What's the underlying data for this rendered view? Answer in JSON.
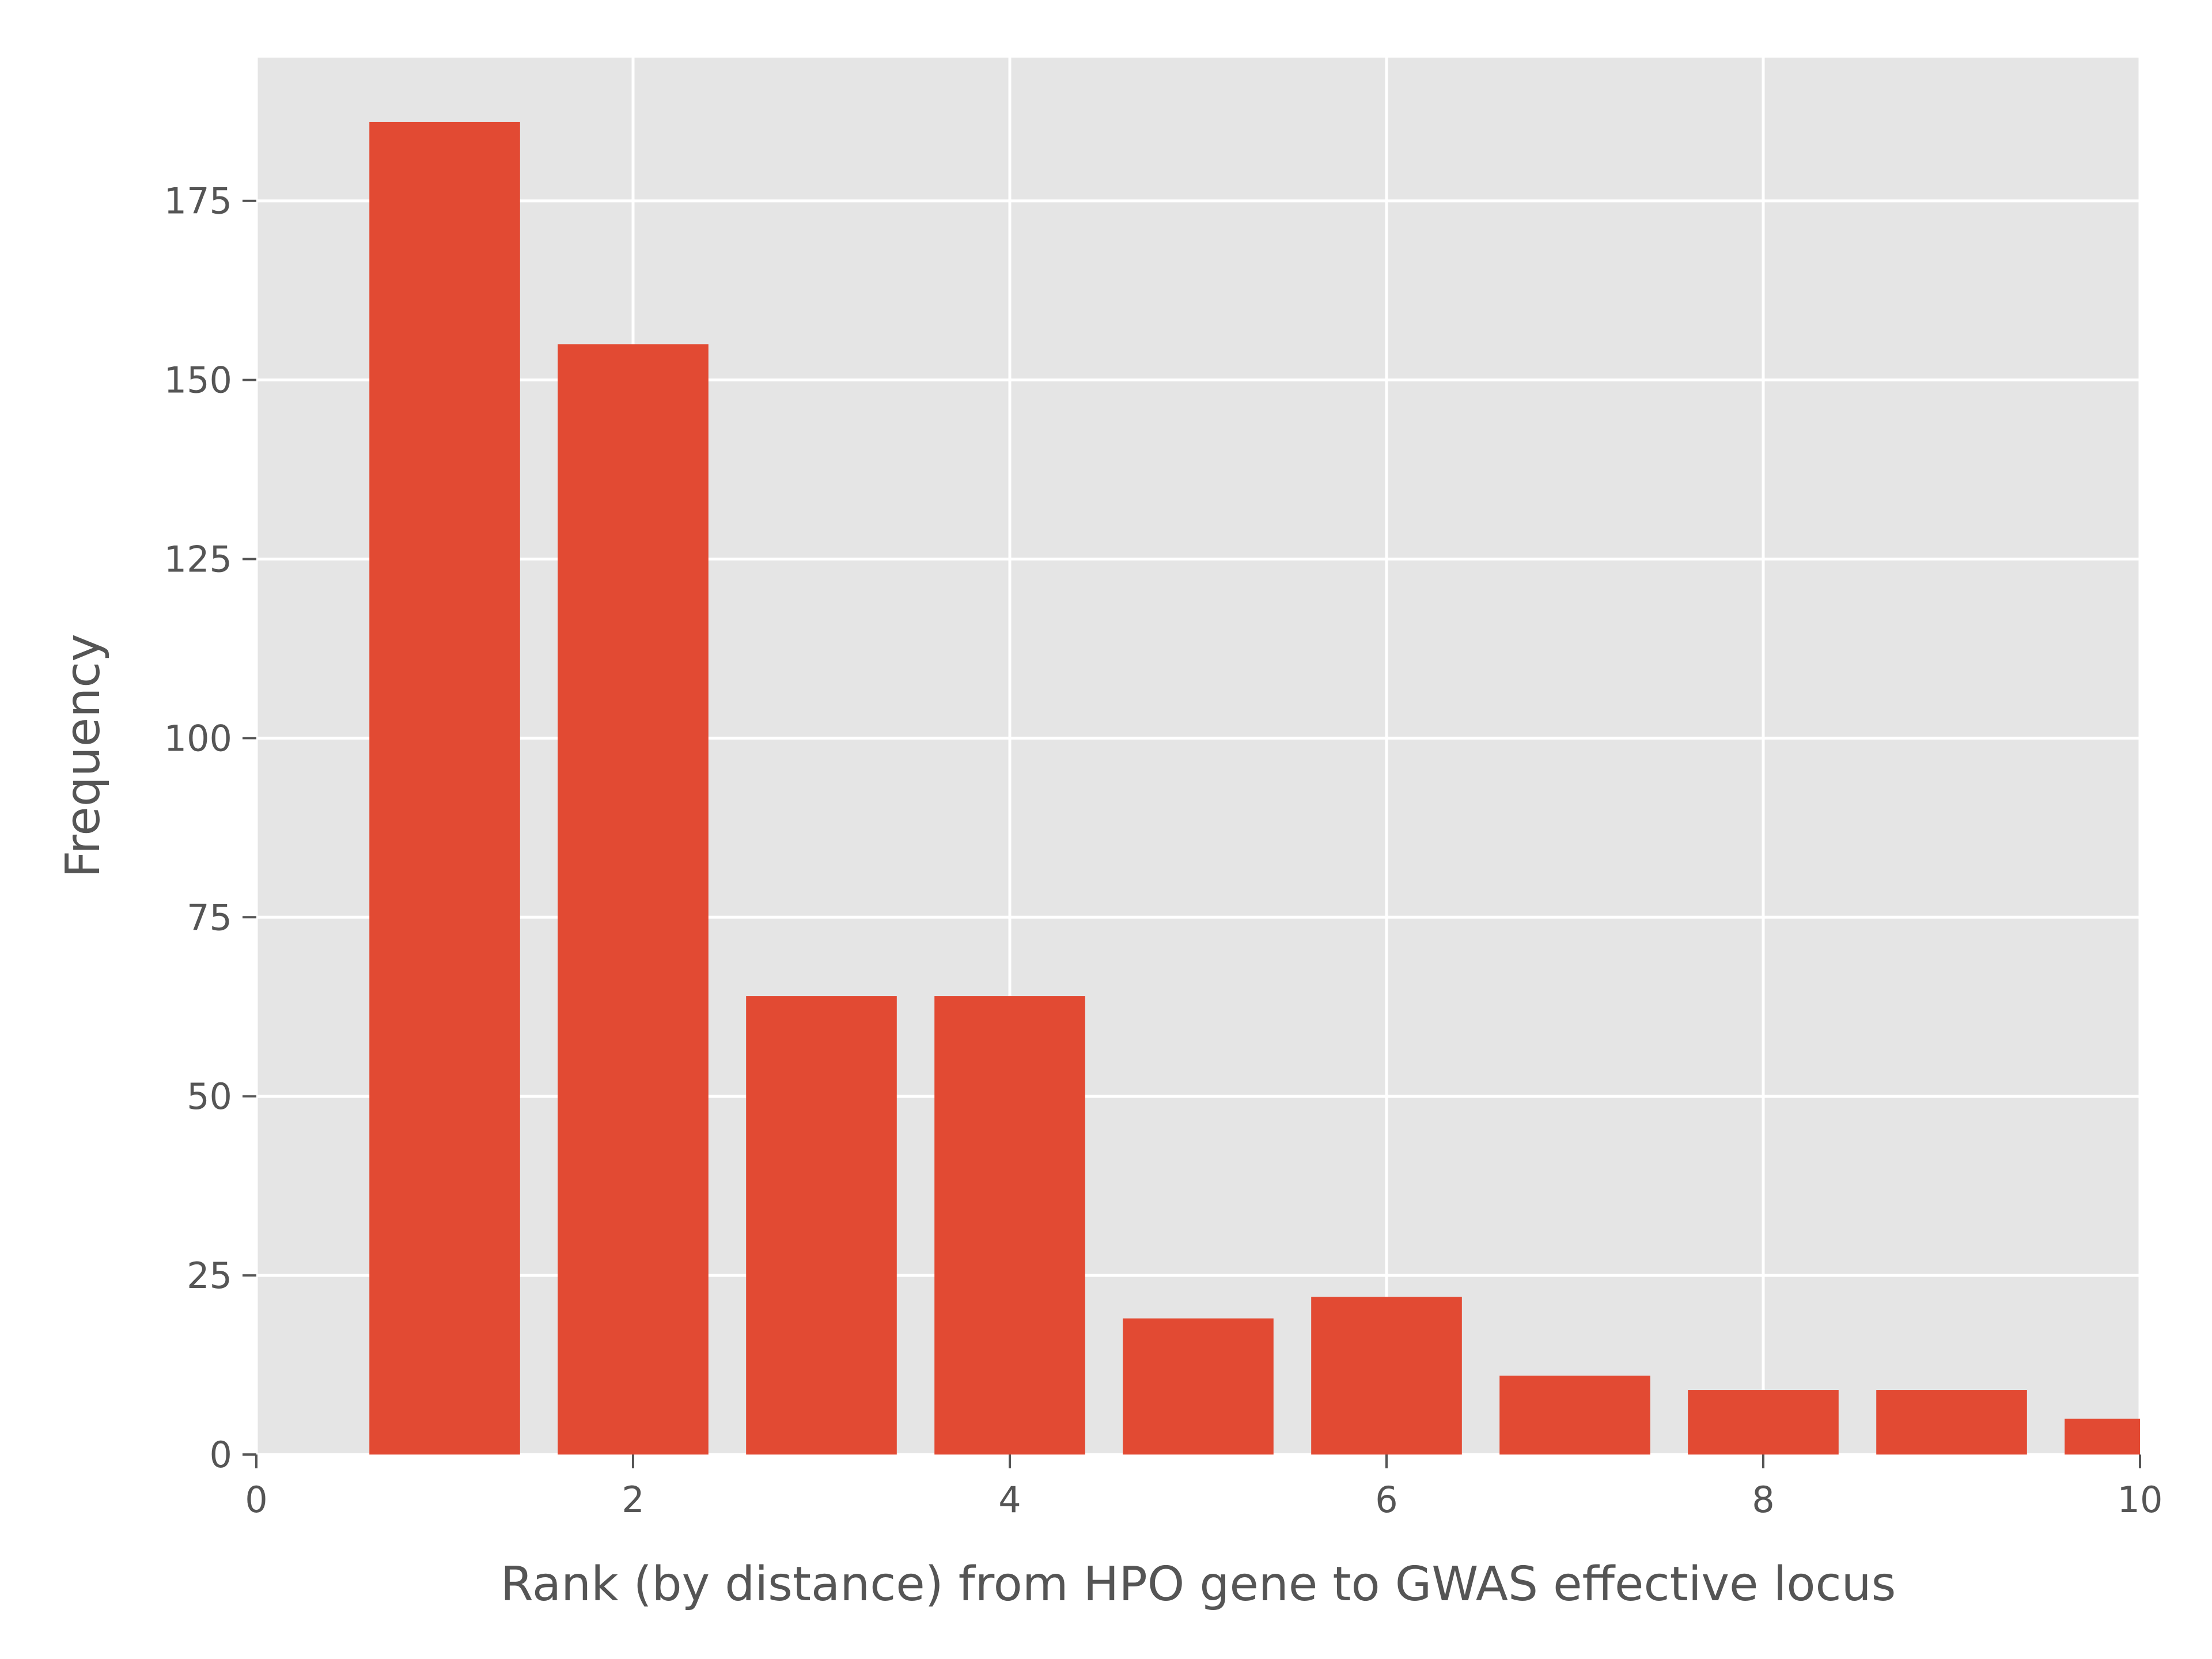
{
  "chart_data": {
    "type": "bar",
    "title": "",
    "xlabel": "Rank (by distance) from HPO gene to GWAS effective locus",
    "ylabel": "Frequency",
    "x": [
      1,
      2,
      3,
      4,
      5,
      6,
      7,
      8,
      9,
      10
    ],
    "values": [
      186,
      155,
      64,
      64,
      19,
      22,
      11,
      9,
      9,
      5
    ],
    "bar_width": 0.8,
    "xlim": [
      0,
      10
    ],
    "ylim": [
      0,
      195
    ],
    "xticks": [
      0,
      2,
      4,
      6,
      8,
      10
    ],
    "yticks": [
      0,
      25,
      50,
      75,
      100,
      125,
      150,
      175
    ],
    "xtick_labels": [
      "0",
      "2",
      "4",
      "6",
      "8",
      "10"
    ],
    "ytick_labels": [
      "0",
      "25",
      "50",
      "75",
      "100",
      "125",
      "150",
      "175"
    ],
    "grid": true,
    "legend": "none",
    "colors": {
      "bar": "#E24A33",
      "plot_background": "#E5E5E5",
      "grid": "#FFFFFF",
      "text": "#555555"
    }
  }
}
